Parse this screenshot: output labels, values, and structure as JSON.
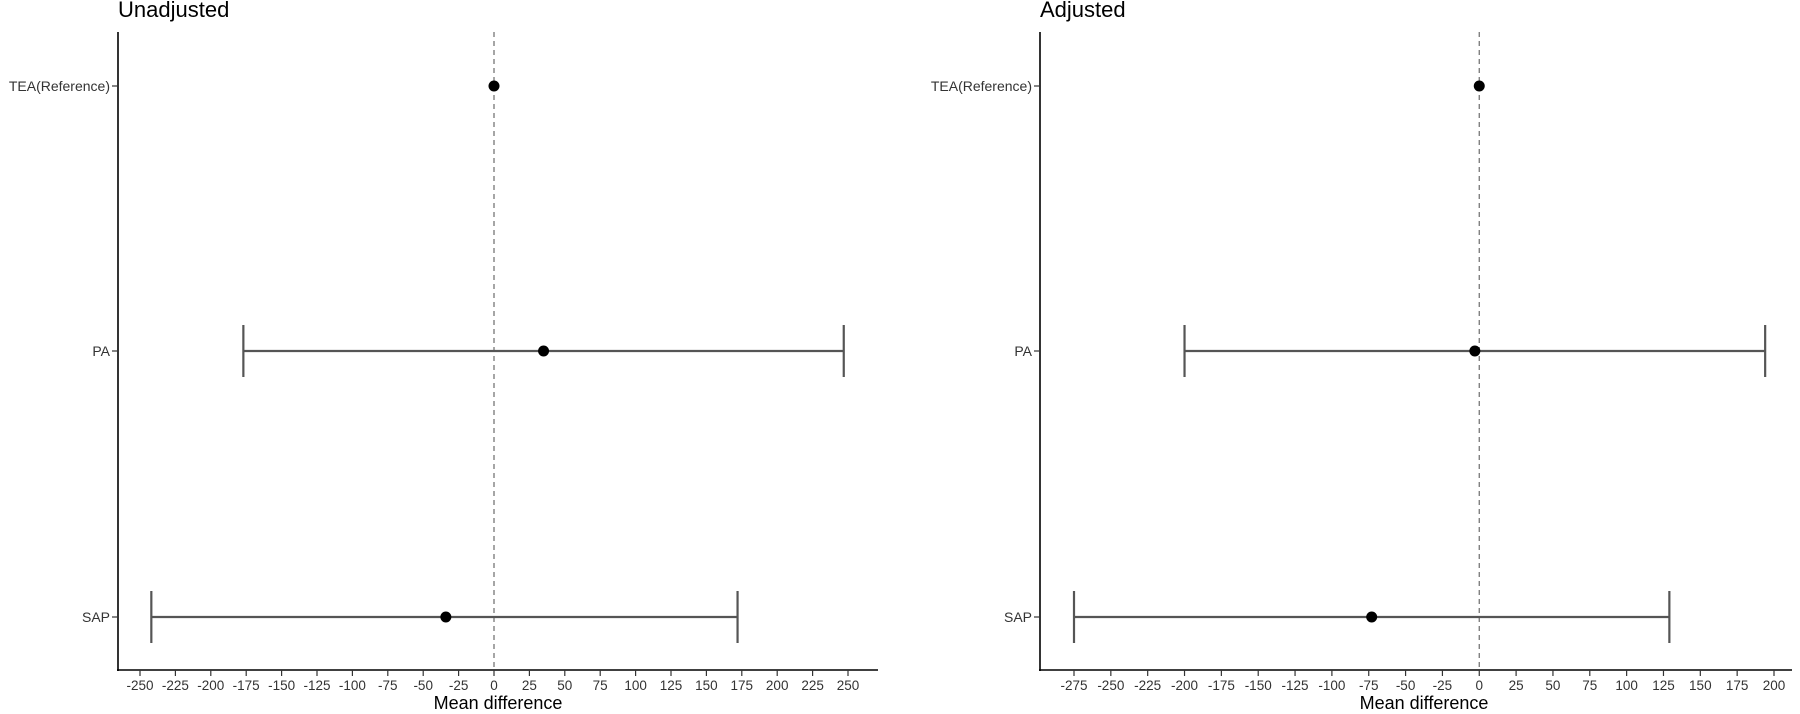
{
  "chart_data": [
    {
      "type": "forest",
      "title": "Unadjusted",
      "xlabel": "Mean difference",
      "categories": [
        "TEA(Reference)",
        "PA",
        "SAP"
      ],
      "estimates": [
        0,
        35,
        -34
      ],
      "ci_lower": [
        null,
        -177,
        -242
      ],
      "ci_upper": [
        null,
        247,
        172
      ],
      "xlim": [
        -250,
        250
      ],
      "xticks": [
        -250,
        -225,
        -200,
        -175,
        -150,
        -125,
        -100,
        -75,
        -50,
        -25,
        0,
        25,
        50,
        75,
        100,
        125,
        150,
        175,
        200,
        225,
        250
      ],
      "reference_line": 0
    },
    {
      "type": "forest",
      "title": "Adjusted",
      "xlabel": "Mean difference",
      "categories": [
        "TEA(Reference)",
        "PA",
        "SAP"
      ],
      "estimates": [
        0,
        -3,
        -73
      ],
      "ci_lower": [
        null,
        -200,
        -275
      ],
      "ci_upper": [
        null,
        194,
        129
      ],
      "xlim": [
        -275,
        200
      ],
      "xticks": [
        -275,
        -250,
        -225,
        -200,
        -175,
        -150,
        -125,
        -100,
        -75,
        -50,
        -25,
        0,
        25,
        50,
        75,
        100,
        125,
        150,
        175,
        200
      ],
      "reference_line": 0
    }
  ],
  "colors": {
    "point": "#000000",
    "errorbar": "#555555",
    "axis": "#000000",
    "refline": "#777777"
  }
}
